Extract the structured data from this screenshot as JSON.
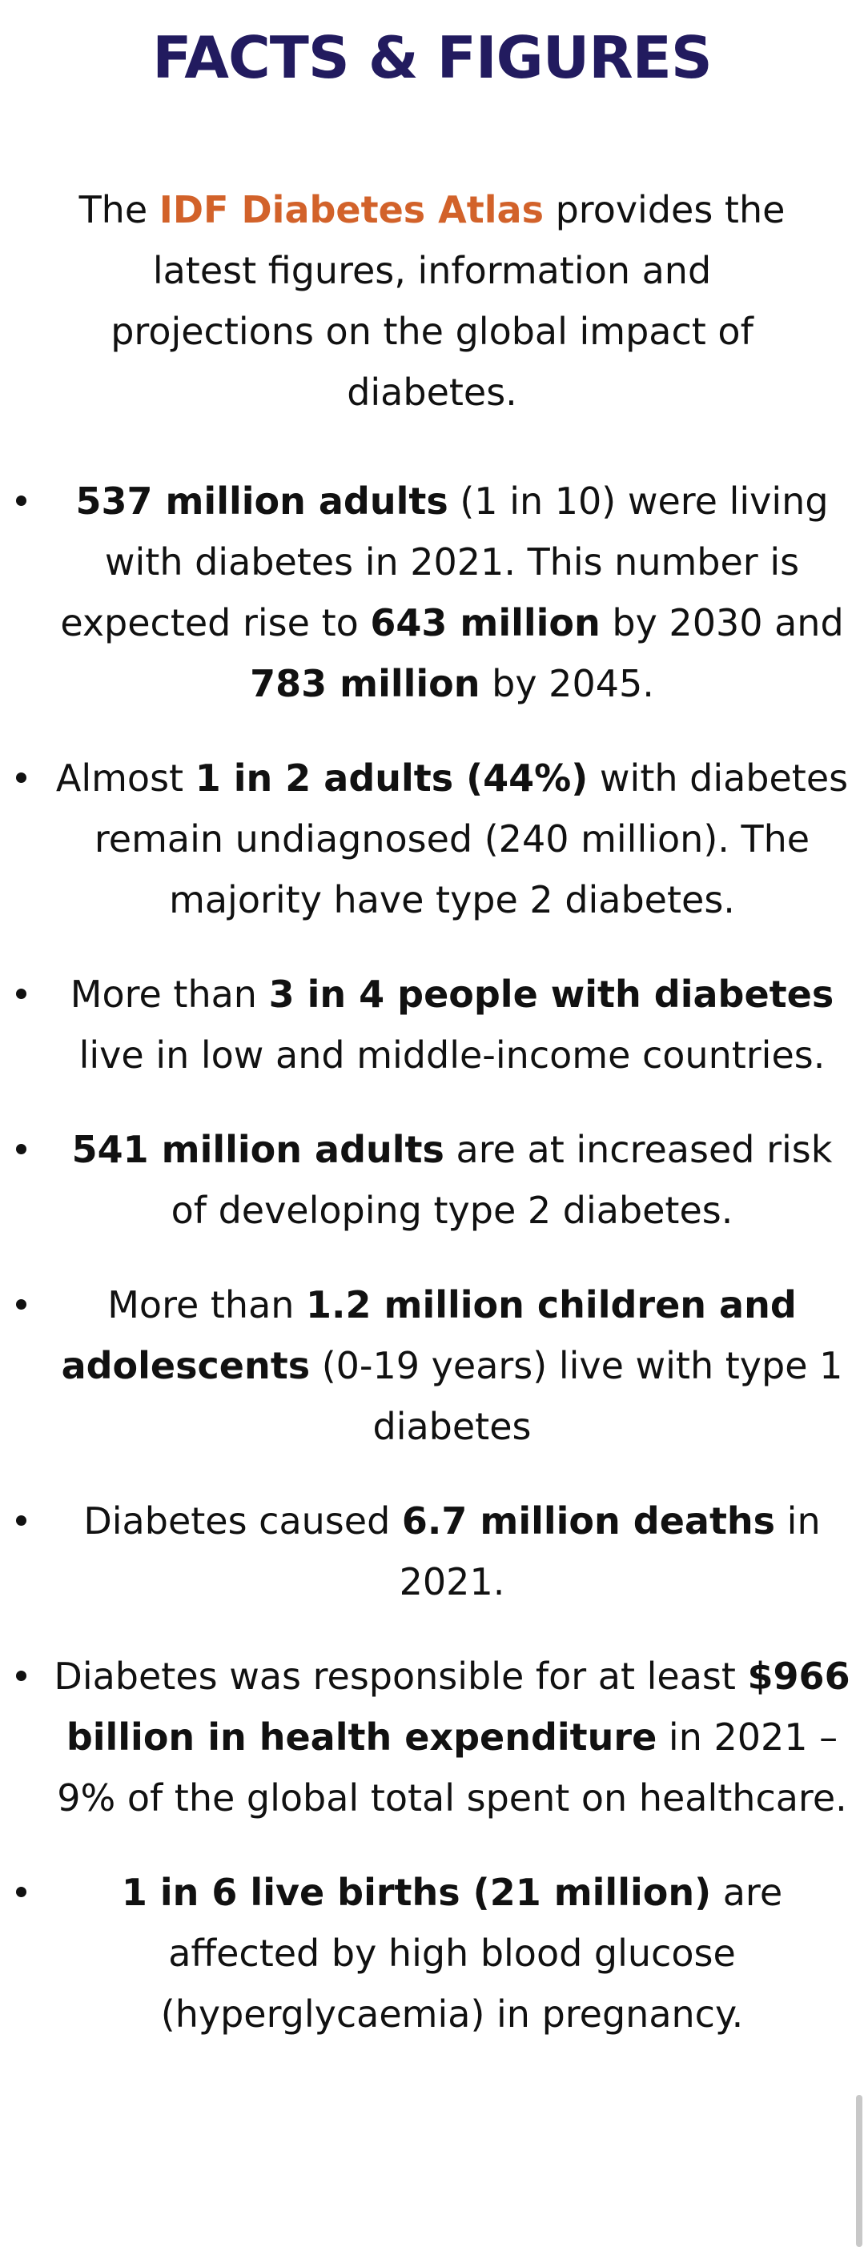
{
  "header": {
    "title": "FACTS & FIGURES"
  },
  "intro": {
    "runs": [
      {
        "t": "The "
      },
      {
        "t": "IDF Diabetes Atlas",
        "s": "accent"
      },
      {
        "t": " provides the latest figures, information and projections on the global impact of diabetes."
      }
    ]
  },
  "facts": [
    {
      "runs": [
        {
          "t": "537 million adults",
          "s": "bold"
        },
        {
          "t": " (1 in 10) were living with diabetes in 2021. This number is expected rise to "
        },
        {
          "t": "643 million",
          "s": "bold"
        },
        {
          "t": " by 2030 and "
        },
        {
          "t": "783 million",
          "s": "bold"
        },
        {
          "t": " by 2045."
        }
      ]
    },
    {
      "runs": [
        {
          "t": "Almost "
        },
        {
          "t": "1 in 2 adults (44%)",
          "s": "bold"
        },
        {
          "t": " with diabetes remain undiagnosed (240 million). The majority have type 2 diabetes."
        }
      ]
    },
    {
      "runs": [
        {
          "t": "More than "
        },
        {
          "t": "3 in 4 people with diabetes",
          "s": "bold"
        },
        {
          "t": " live in low and middle-income countries."
        }
      ]
    },
    {
      "runs": [
        {
          "t": "541 million adults",
          "s": "bold"
        },
        {
          "t": " are at increased risk of developing type 2 diabetes."
        }
      ]
    },
    {
      "runs": [
        {
          "t": "More than "
        },
        {
          "t": "1.2 million children and adolescents",
          "s": "bold"
        },
        {
          "t": " (0-19 years) live with type 1 diabetes"
        }
      ]
    },
    {
      "runs": [
        {
          "t": "Diabetes caused "
        },
        {
          "t": "6.7 million deaths",
          "s": "bold"
        },
        {
          "t": " in 2021."
        }
      ]
    },
    {
      "runs": [
        {
          "t": "Diabetes was responsible for at least "
        },
        {
          "t": "$966 billion in health expenditure",
          "s": "bold"
        },
        {
          "t": " in 2021 – 9% of the global total spent on healthcare."
        }
      ]
    },
    {
      "runs": [
        {
          "t": "1 in 6 live births (21 million)",
          "s": "bold"
        },
        {
          "t": " are affected by high blood glucose (hyperglycaemia) in pregnancy."
        }
      ]
    }
  ]
}
